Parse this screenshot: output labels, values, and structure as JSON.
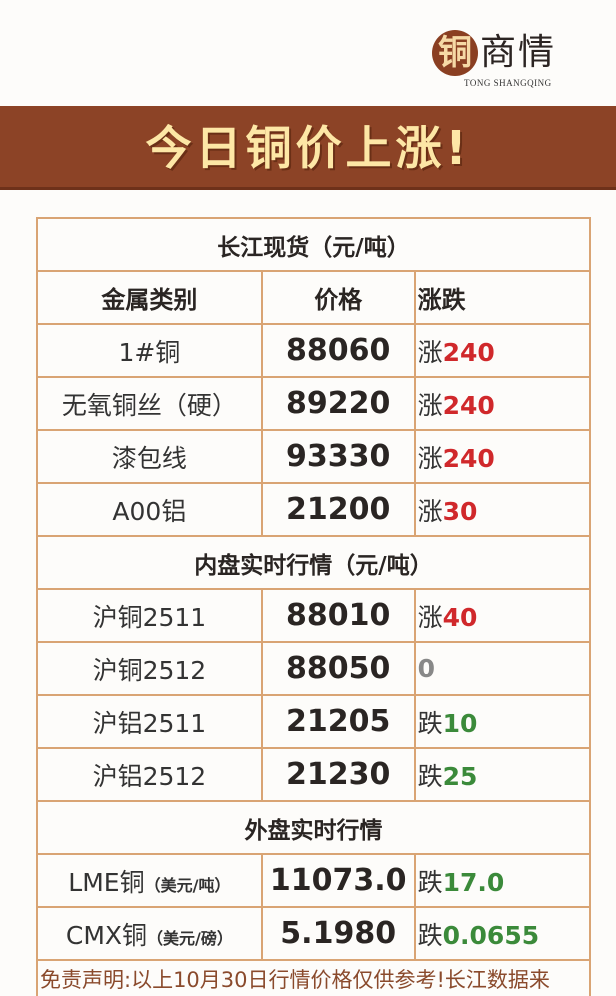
{
  "logo": {
    "mark": "铜",
    "name": "商情",
    "pinyin": "TONG SHANGQING"
  },
  "banner": {
    "title": "今日铜价上涨!"
  },
  "sections": [
    {
      "title": "长江现货（元/吨）",
      "headers": [
        "金属类别",
        "价格",
        "涨跌"
      ],
      "rows": [
        {
          "name": "1#铜",
          "price": "88060",
          "dir": "涨",
          "change": "240",
          "trend": "up"
        },
        {
          "name": "无氧铜丝（硬）",
          "price": "89220",
          "dir": "涨",
          "change": "240",
          "trend": "up"
        },
        {
          "name": "漆包线",
          "price": "93330",
          "dir": "涨",
          "change": "240",
          "trend": "up"
        },
        {
          "name": "A00铝",
          "price": "21200",
          "dir": "涨",
          "change": "30",
          "trend": "up"
        }
      ]
    },
    {
      "title": "内盘实时行情（元/吨）",
      "rows": [
        {
          "name": "沪铜2511",
          "price": "88010",
          "dir": "涨",
          "change": "40",
          "trend": "up"
        },
        {
          "name": "沪铜2512",
          "price": "88050",
          "dir": "",
          "change": "0",
          "trend": "flat"
        },
        {
          "name": "沪铝2511",
          "price": "21205",
          "dir": "跌",
          "change": "10",
          "trend": "down"
        },
        {
          "name": "沪铝2512",
          "price": "21230",
          "dir": "跌",
          "change": "25",
          "trend": "down"
        }
      ]
    },
    {
      "title": "外盘实时行情",
      "rows": [
        {
          "name": "LME铜",
          "unit": "（美元/吨）",
          "price": "11073.0",
          "dir": "跌",
          "change": "17.0",
          "trend": "down"
        },
        {
          "name": "CMX铜",
          "unit": "（美元/磅）",
          "price": "5.1980",
          "dir": "跌",
          "change": "0.0655",
          "trend": "down"
        }
      ]
    }
  ],
  "disclaimer": "免责声明:以上10月30日行情价格仅供参考!长江数据来",
  "colors": {
    "banner": "#8c4326",
    "banner_text": "#fde7a6",
    "border": "#d9a474",
    "up": "#d0282b",
    "down": "#3b8a3a"
  }
}
